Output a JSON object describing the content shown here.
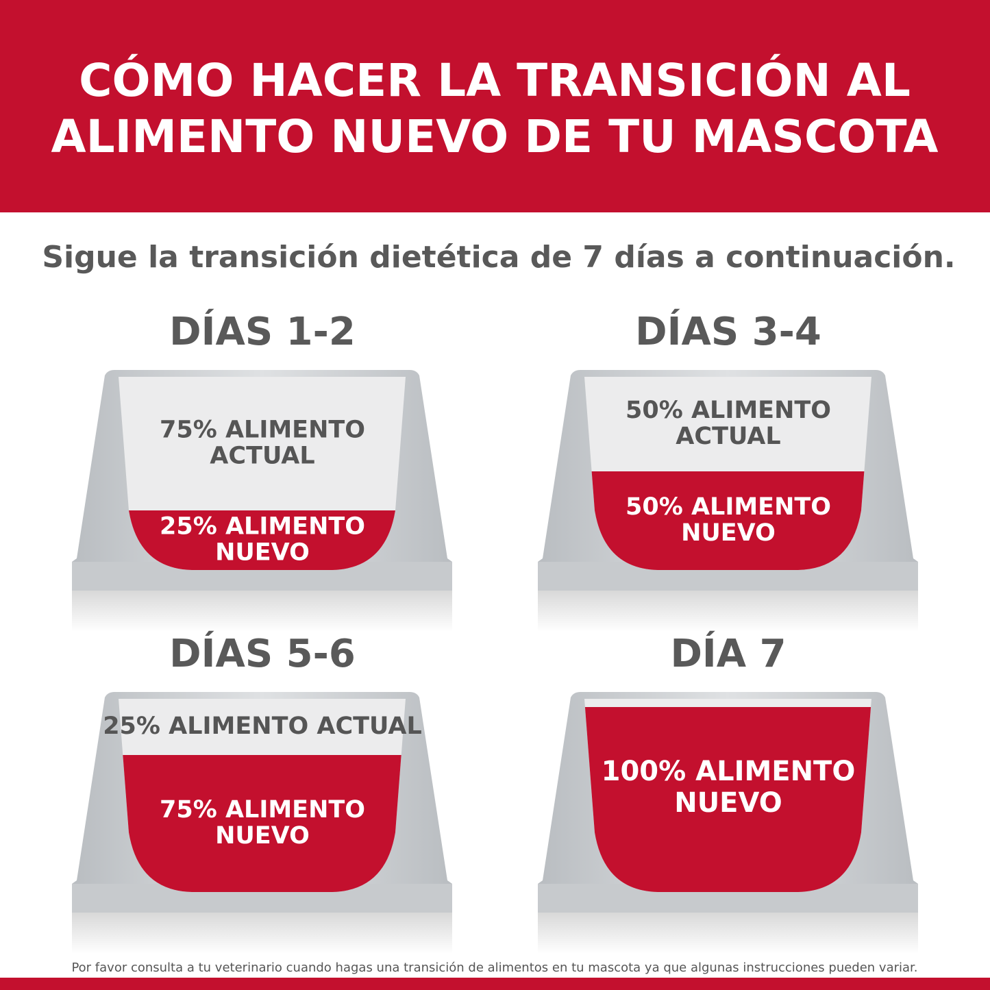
{
  "header": {
    "title": [
      "CÓMO HACER LA TRANSICIÓN AL",
      "ALIMENTO NUEVO DE TU MASCOTA"
    ]
  },
  "subtitle": "Sigue la transición dietética de 7 días a continuación.",
  "steps": [
    {
      "label": "DÍAS 1-2",
      "current": [
        "75% ALIMENTO",
        "ACTUAL"
      ],
      "new": [
        "25% ALIMENTO",
        "NUEVO"
      ]
    },
    {
      "label": "DÍAS 3-4",
      "current": [
        "50% ALIMENTO",
        "ACTUAL"
      ],
      "new": [
        "50% ALIMENTO",
        "NUEVO"
      ]
    },
    {
      "label": "DÍAS 5-6",
      "current": [
        "25% ALIMENTO ACTUAL"
      ],
      "new": [
        "75% ALIMENTO",
        "NUEVO"
      ]
    },
    {
      "label": "DÍA 7",
      "current": [],
      "new": [
        "100% ALIMENTO",
        "NUEVO"
      ]
    }
  ],
  "footer": "Por favor consulta a tu veterinario cuando hagas una transición de alimentos en tu mascota ya que algunas instrucciones pueden variar."
}
